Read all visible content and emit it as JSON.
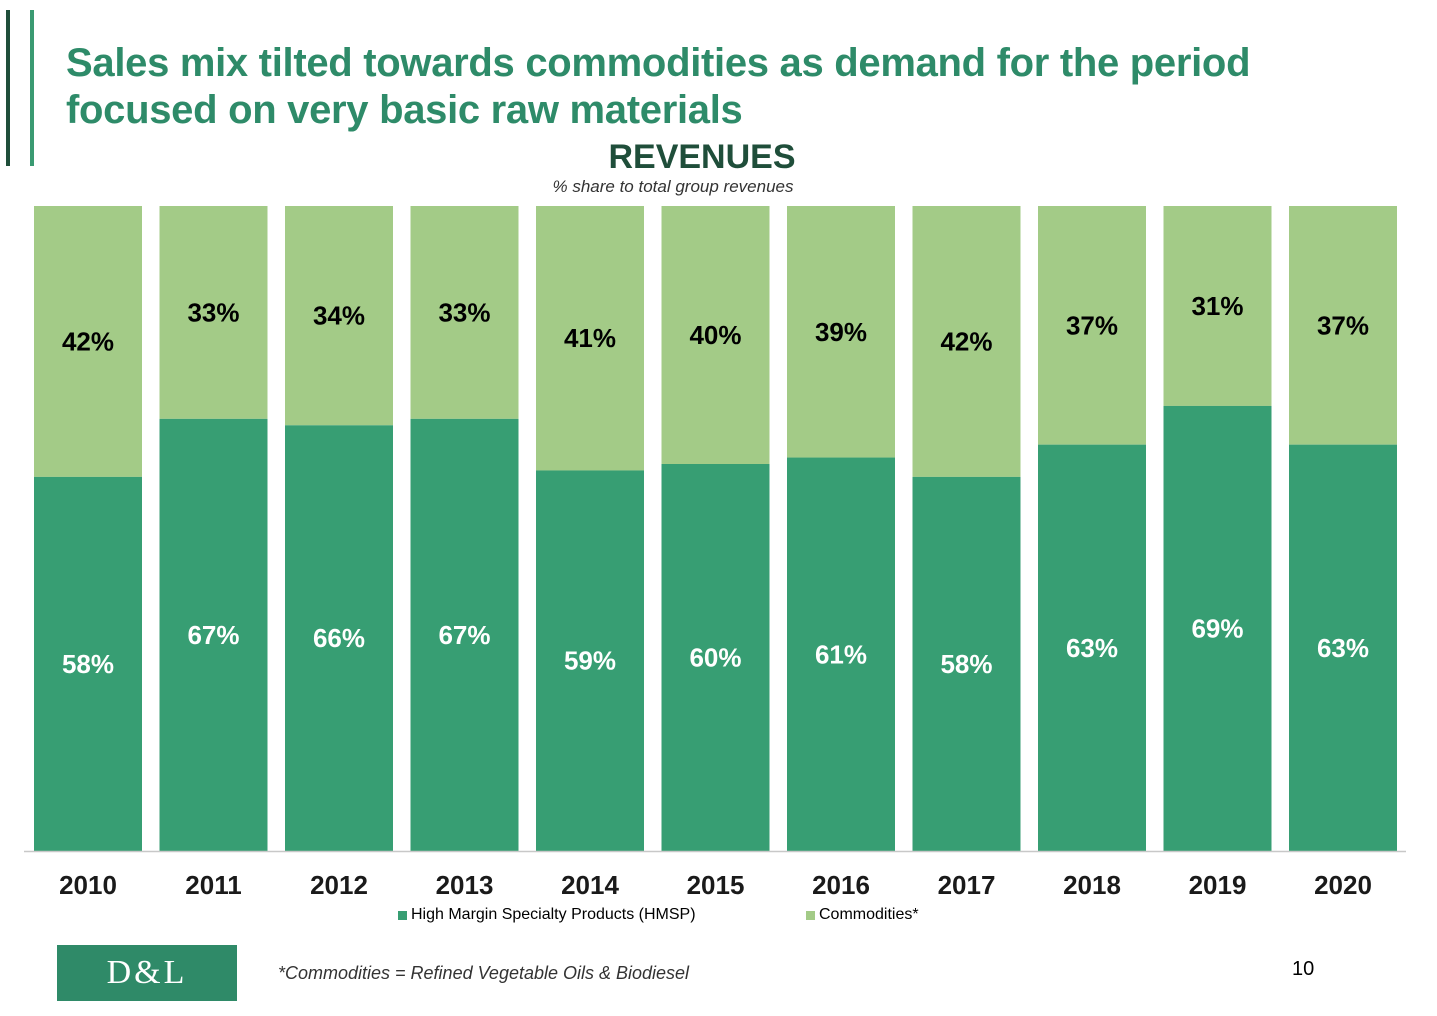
{
  "slide": {
    "title": "Sales mix tilted towards commodities as demand for the period focused on very basic raw materials",
    "footnote": "*Commodities = Refined Vegetable Oils & Biodiesel",
    "page_number": "10",
    "logo_text": "D&L"
  },
  "colors": {
    "hmsp": "#379e73",
    "commodities": "#a3cb87",
    "title": "#2e8b69",
    "dark_green": "#1f4e3a"
  },
  "chart_data": {
    "type": "bar",
    "stacked": true,
    "percent_stacked": true,
    "title": "REVENUES",
    "subtitle": "% share to total group revenues",
    "categories": [
      "2010",
      "2011",
      "2012",
      "2013",
      "2014",
      "2015",
      "2016",
      "2017",
      "2018",
      "2019",
      "2020"
    ],
    "series": [
      {
        "name": "High Margin Specialty Products (HMSP)",
        "values": [
          58,
          67,
          66,
          67,
          59,
          60,
          61,
          58,
          63,
          69,
          63
        ],
        "labels": [
          "58%",
          "67%",
          "66%",
          "67%",
          "59%",
          "60%",
          "61%",
          "58%",
          "63%",
          "69%",
          "63%"
        ],
        "color": "#379e73",
        "label_color": "#ffffff"
      },
      {
        "name": "Commodities*",
        "values": [
          42,
          33,
          34,
          33,
          41,
          40,
          39,
          42,
          37,
          31,
          37
        ],
        "labels": [
          "42%",
          "33%",
          "34%",
          "33%",
          "41%",
          "40%",
          "39%",
          "42%",
          "37%",
          "31%",
          "37%"
        ],
        "color": "#a3cb87",
        "label_color": "#000000"
      }
    ],
    "ylim": [
      0,
      100
    ],
    "grid": false,
    "legend_position": "bottom"
  }
}
